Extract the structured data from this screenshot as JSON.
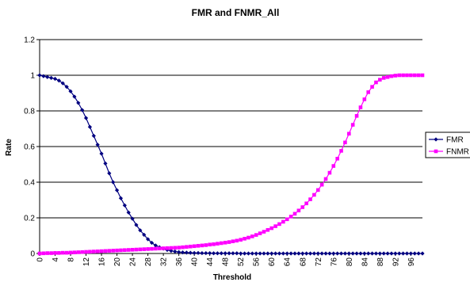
{
  "chart_data": {
    "type": "line",
    "title": "FMR and FNMR_All",
    "xlabel": "Threshold",
    "ylabel": "Rate",
    "xlim": [
      0,
      99
    ],
    "ylim": [
      0,
      1.2
    ],
    "y_ticks": [
      "0",
      "0.2",
      "0.4",
      "0.6",
      "0.8",
      "1",
      "1.2"
    ],
    "x_tick_step": 4,
    "x_tick_max": 96,
    "grid": "horizontal",
    "legend_position": "right",
    "legend_labels": [
      "FMR",
      "FNMR"
    ],
    "series": [
      {
        "name": "FMR",
        "color": "#000080",
        "marker": "diamond",
        "x": [
          0,
          1,
          2,
          3,
          4,
          5,
          6,
          7,
          8,
          9,
          10,
          11,
          12,
          13,
          14,
          15,
          16,
          17,
          18,
          19,
          20,
          21,
          22,
          23,
          24,
          25,
          26,
          27,
          28,
          29,
          30,
          31,
          32,
          33,
          34,
          35,
          36,
          37,
          38,
          39,
          40,
          41,
          42,
          43,
          44,
          45,
          46,
          47,
          48,
          49,
          50,
          51,
          52,
          53,
          54,
          55,
          56,
          57,
          58,
          59,
          60,
          61,
          62,
          63,
          64,
          65,
          66,
          67,
          68,
          69,
          70,
          71,
          72,
          73,
          74,
          75,
          76,
          77,
          78,
          79,
          80,
          81,
          82,
          83,
          84,
          85,
          86,
          87,
          88,
          89,
          90,
          91,
          92,
          93,
          94,
          95,
          96,
          97,
          98,
          99
        ],
        "values": [
          1.0,
          0.995,
          0.99,
          0.985,
          0.98,
          0.97,
          0.955,
          0.935,
          0.91,
          0.88,
          0.845,
          0.805,
          0.76,
          0.71,
          0.66,
          0.61,
          0.56,
          0.505,
          0.45,
          0.4,
          0.355,
          0.31,
          0.27,
          0.23,
          0.195,
          0.16,
          0.13,
          0.105,
          0.08,
          0.06,
          0.045,
          0.035,
          0.027,
          0.02,
          0.015,
          0.011,
          0.008,
          0.006,
          0.005,
          0.004,
          0.003,
          0.003,
          0.002,
          0.002,
          0.002,
          0.001,
          0.001,
          0.001,
          0.001,
          0.001,
          0.001,
          0.001,
          0,
          0,
          0,
          0,
          0,
          0,
          0,
          0,
          0,
          0,
          0,
          0,
          0,
          0,
          0,
          0,
          0,
          0,
          0,
          0,
          0,
          0,
          0,
          0,
          0,
          0,
          0,
          0,
          0,
          0,
          0,
          0,
          0,
          0,
          0,
          0,
          0,
          0,
          0,
          0,
          0,
          0,
          0,
          0,
          0,
          0,
          0,
          0
        ]
      },
      {
        "name": "FNMR",
        "color": "#ff00ff",
        "marker": "square",
        "x": [
          0,
          1,
          2,
          3,
          4,
          5,
          6,
          7,
          8,
          9,
          10,
          11,
          12,
          13,
          14,
          15,
          16,
          17,
          18,
          19,
          20,
          21,
          22,
          23,
          24,
          25,
          26,
          27,
          28,
          29,
          30,
          31,
          32,
          33,
          34,
          35,
          36,
          37,
          38,
          39,
          40,
          41,
          42,
          43,
          44,
          45,
          46,
          47,
          48,
          49,
          50,
          51,
          52,
          53,
          54,
          55,
          56,
          57,
          58,
          59,
          60,
          61,
          62,
          63,
          64,
          65,
          66,
          67,
          68,
          69,
          70,
          71,
          72,
          73,
          74,
          75,
          76,
          77,
          78,
          79,
          80,
          81,
          82,
          83,
          84,
          85,
          86,
          87,
          88,
          89,
          90,
          91,
          92,
          93,
          94,
          95,
          96,
          97,
          98,
          99
        ],
        "values": [
          0.0,
          0.001,
          0.002,
          0.002,
          0.003,
          0.003,
          0.004,
          0.004,
          0.005,
          0.006,
          0.007,
          0.008,
          0.009,
          0.01,
          0.011,
          0.012,
          0.013,
          0.014,
          0.015,
          0.016,
          0.017,
          0.018,
          0.019,
          0.02,
          0.021,
          0.022,
          0.023,
          0.024,
          0.025,
          0.026,
          0.027,
          0.028,
          0.029,
          0.03,
          0.031,
          0.032,
          0.033,
          0.035,
          0.037,
          0.039,
          0.041,
          0.043,
          0.045,
          0.047,
          0.05,
          0.052,
          0.055,
          0.058,
          0.061,
          0.064,
          0.068,
          0.072,
          0.077,
          0.083,
          0.089,
          0.096,
          0.104,
          0.113,
          0.122,
          0.132,
          0.142,
          0.153,
          0.165,
          0.178,
          0.192,
          0.207,
          0.223,
          0.241,
          0.26,
          0.281,
          0.304,
          0.329,
          0.356,
          0.386,
          0.418,
          0.453,
          0.491,
          0.532,
          0.576,
          0.623,
          0.672,
          0.722,
          0.772,
          0.82,
          0.865,
          0.905,
          0.935,
          0.96,
          0.975,
          0.985,
          0.99,
          0.995,
          0.998,
          1.0,
          1.0,
          1.0,
          1.0,
          1.0,
          1.0,
          1.0
        ]
      }
    ]
  }
}
